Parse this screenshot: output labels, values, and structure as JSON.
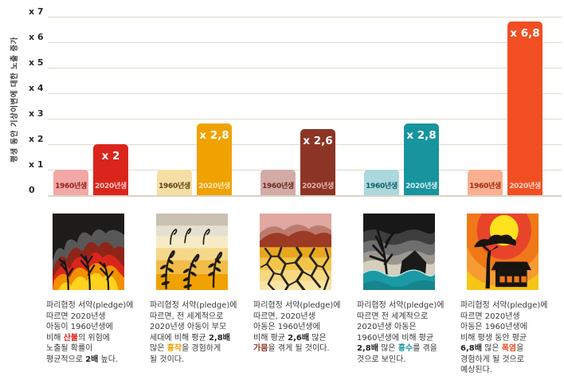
{
  "chart_data": {
    "type": "bar",
    "title": "",
    "xlabel": "",
    "ylabel": "평생 동안 기상이변에 대한 노출 증가",
    "ylim": [
      0,
      7
    ],
    "grid": true,
    "cohorts": [
      "1960년생",
      "2020년생"
    ],
    "categories": [
      "산불",
      "흉작",
      "가뭄",
      "홍수",
      "폭염"
    ],
    "series": [
      {
        "name": "1960년생",
        "values": [
          1,
          1,
          1,
          1,
          1
        ]
      },
      {
        "name": "2020년생",
        "values": [
          2,
          2.8,
          2.6,
          2.8,
          6.8
        ]
      }
    ],
    "value_labels": [
      "x 2",
      "x 2,8",
      "x 2,6",
      "x 2,8",
      "x 6,8"
    ],
    "y_ticks": [
      {
        "label": "x 7",
        "value": 7
      },
      {
        "label": "x 6",
        "value": 6
      },
      {
        "label": "x 5",
        "value": 5
      },
      {
        "label": "x 4",
        "value": 4
      },
      {
        "label": "x 3",
        "value": 3
      },
      {
        "label": "x 2",
        "value": 2
      },
      {
        "label": "x 1",
        "value": 1
      },
      {
        "label": "0",
        "value": 0
      }
    ],
    "groups": [
      {
        "key": "wildfire",
        "hazard": "산불",
        "v1960": 1,
        "v2020": 2,
        "value_label": "x 2",
        "bar1960_color": "#F2A8A6",
        "bar2020_color": "#DA251D",
        "label1960_color": "#8E221B",
        "label2020_color": "#F6CAC6"
      },
      {
        "key": "crop-failure",
        "hazard": "흉작",
        "v1960": 1,
        "v2020": 2.8,
        "value_label": "x 2,8",
        "bar1960_color": "#F6DFA4",
        "bar2020_color": "#EFA202",
        "label1960_color": "#574312",
        "label2020_color": "#FAE6BC"
      },
      {
        "key": "drought",
        "hazard": "가뭄",
        "v1960": 1,
        "v2020": 2.6,
        "value_label": "x 2,6",
        "bar1960_color": "#D2ABA6",
        "bar2020_color": "#8C3526",
        "label1960_color": "#6B2A1E",
        "label2020_color": "#E2B3AA"
      },
      {
        "key": "flood",
        "hazard": "홍수",
        "v1960": 1,
        "v2020": 2.8,
        "value_label": "x 2,8",
        "bar1960_color": "#ABD8DD",
        "bar2020_color": "#17949E",
        "label1960_color": "#0F5E66",
        "label2020_color": "#D6EEEF"
      },
      {
        "key": "heatwave",
        "hazard": "폭염",
        "v1960": 1,
        "v2020": 6.8,
        "value_label": "x 6,8",
        "bar1960_color": "#FAAF90",
        "bar2020_color": "#F14E22",
        "label1960_color": "#9C2B10",
        "label2020_color": "#FCD9C9"
      }
    ]
  },
  "cards": [
    {
      "key": "wildfire",
      "highlight_color": "#DA251D",
      "lines": [
        [
          {
            "t": "파리협정 서약(pledge)에"
          }
        ],
        [
          {
            "t": "따르면 2020년생"
          }
        ],
        [
          {
            "t": "아동이 1960년생에"
          }
        ],
        [
          {
            "t": "비해 "
          },
          {
            "t": "산불",
            "hl": true
          },
          {
            "t": "의 위험에"
          }
        ],
        [
          {
            "t": "노출될 확률이"
          }
        ],
        [
          {
            "t": "평균적으로 "
          },
          {
            "t": "2배",
            "b": true
          },
          {
            "t": " 높다."
          }
        ]
      ]
    },
    {
      "key": "crop-failure",
      "highlight_color": "#EFA202",
      "lines": [
        [
          {
            "t": "파리협정 서약(pledge)에"
          }
        ],
        [
          {
            "t": "따르면, 전 세계적으로"
          }
        ],
        [
          {
            "t": "2020년생 아동이 부모"
          }
        ],
        [
          {
            "t": "세대에 비해 평균 "
          },
          {
            "t": "2,8배",
            "b": true
          }
        ],
        [
          {
            "t": "많은 "
          },
          {
            "t": "흉작",
            "hl": true
          },
          {
            "t": "을 경험하게"
          }
        ],
        [
          {
            "t": "될 것이다."
          }
        ]
      ]
    },
    {
      "key": "drought",
      "highlight_color": "#8C3526",
      "lines": [
        [
          {
            "t": "파리협정 서약(pledge)에"
          }
        ],
        [
          {
            "t": "따르면, 2020년생"
          }
        ],
        [
          {
            "t": "아동은 1960년생에"
          }
        ],
        [
          {
            "t": "비해 평균 "
          },
          {
            "t": "2,6배",
            "b": true
          },
          {
            "t": " 많은"
          }
        ],
        [
          {
            "t": "가뭄",
            "hl": true
          },
          {
            "t": "을 겪게 될 것이다."
          }
        ]
      ]
    },
    {
      "key": "flood",
      "highlight_color": "#17949E",
      "lines": [
        [
          {
            "t": "파리협정 서약(pledge)에"
          }
        ],
        [
          {
            "t": "따르면 전 세계적으로"
          }
        ],
        [
          {
            "t": "2020년생 아동은"
          }
        ],
        [
          {
            "t": "1960년생에 비해 평균"
          }
        ],
        [
          {
            "t": "2,8배",
            "b": true
          },
          {
            "t": " 많은 "
          },
          {
            "t": "홍수",
            "hl": true
          },
          {
            "t": "를 겪을"
          }
        ],
        [
          {
            "t": "것으로 보인다."
          }
        ]
      ]
    },
    {
      "key": "heatwave",
      "highlight_color": "#F14E22",
      "lines": [
        [
          {
            "t": "파리협정 서약(pledge)에"
          }
        ],
        [
          {
            "t": "따르면 2020년생"
          }
        ],
        [
          {
            "t": "아동은 1960년생에"
          }
        ],
        [
          {
            "t": "비해 평생 동안 평균"
          }
        ],
        [
          {
            "t": "6,8배",
            "b": true
          },
          {
            "t": " 많은 "
          },
          {
            "t": "폭염",
            "hl": true
          },
          {
            "t": "을"
          }
        ],
        [
          {
            "t": "경험하게 될 것으로"
          }
        ],
        [
          {
            "t": "예상된다."
          }
        ]
      ]
    }
  ]
}
